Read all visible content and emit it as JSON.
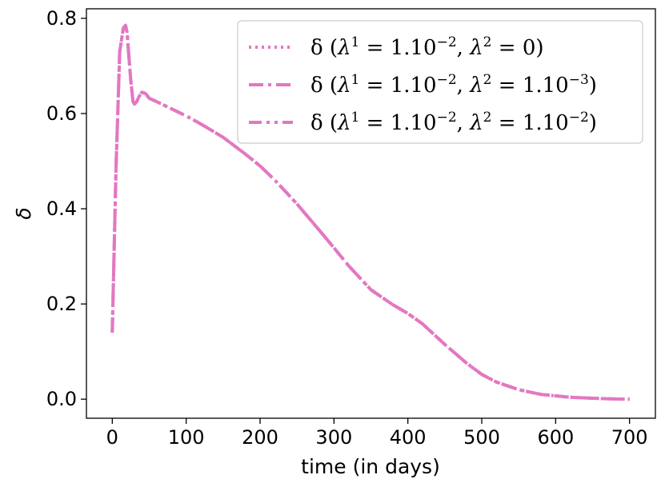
{
  "chart_data": {
    "type": "line",
    "xlabel": "time (in days)",
    "ylabel": "δ",
    "xlim": [
      -35,
      735
    ],
    "ylim": [
      -0.04,
      0.82
    ],
    "xticks": [
      0,
      100,
      200,
      300,
      400,
      500,
      600,
      700
    ],
    "yticks": [
      0.0,
      0.2,
      0.4,
      0.6,
      0.8
    ],
    "xtick_labels": [
      "0",
      "100",
      "200",
      "300",
      "400",
      "500",
      "600",
      "700"
    ],
    "ytick_labels": [
      "0.0",
      "0.2",
      "0.4",
      "0.6",
      "0.8"
    ],
    "grid": false,
    "legend_position": "top-right",
    "color": "#e377c2",
    "series": [
      {
        "name": "δ (λ¹ = 1.10⁻², λ² = 0)",
        "legend_html": "δ (<tspan font-style='italic'>λ</tspan><tspan baseline-shift='super' font-size='17'>1</tspan> = 1.10<tspan baseline-shift='super' font-size='17'>−2</tspan>, <tspan font-style='italic'>λ</tspan><tspan baseline-shift='super' font-size='17'>2</tspan> = 0)",
        "style": "dotted"
      },
      {
        "name": "δ (λ¹ = 1.10⁻², λ² = 1.10⁻³)",
        "legend_html": "δ (<tspan font-style='italic'>λ</tspan><tspan baseline-shift='super' font-size='17'>1</tspan> = 1.10<tspan baseline-shift='super' font-size='17'>−2</tspan>, <tspan font-style='italic'>λ</tspan><tspan baseline-shift='super' font-size='17'>2</tspan> = 1.10<tspan baseline-shift='super' font-size='17'>−3</tspan>)",
        "style": "dashdot"
      },
      {
        "name": "δ (λ¹ = 1.10⁻², λ² = 1.10⁻²)",
        "legend_html": "δ (<tspan font-style='italic'>λ</tspan><tspan baseline-shift='super' font-size='17'>1</tspan> = 1.10<tspan baseline-shift='super' font-size='17'>−2</tspan>, <tspan font-style='italic'>λ</tspan><tspan baseline-shift='super' font-size='17'>2</tspan> = 1.10<tspan baseline-shift='super' font-size='17'>−2</tspan>)",
        "style": "dashdotdot"
      }
    ],
    "x": [
      0,
      5,
      10,
      15,
      18,
      20,
      22,
      25,
      28,
      30,
      33,
      36,
      40,
      45,
      50,
      60,
      80,
      100,
      120,
      150,
      180,
      200,
      220,
      250,
      280,
      300,
      320,
      350,
      380,
      400,
      420,
      450,
      480,
      500,
      520,
      550,
      580,
      600,
      620,
      650,
      680,
      700
    ],
    "values": [
      0.14,
      0.48,
      0.73,
      0.78,
      0.785,
      0.77,
      0.73,
      0.67,
      0.625,
      0.62,
      0.625,
      0.635,
      0.645,
      0.642,
      0.632,
      0.625,
      0.61,
      0.595,
      0.578,
      0.55,
      0.515,
      0.49,
      0.46,
      0.41,
      0.355,
      0.318,
      0.28,
      0.23,
      0.198,
      0.18,
      0.158,
      0.115,
      0.075,
      0.052,
      0.036,
      0.02,
      0.01,
      0.007,
      0.004,
      0.002,
      0.0005,
      0.0
    ]
  }
}
